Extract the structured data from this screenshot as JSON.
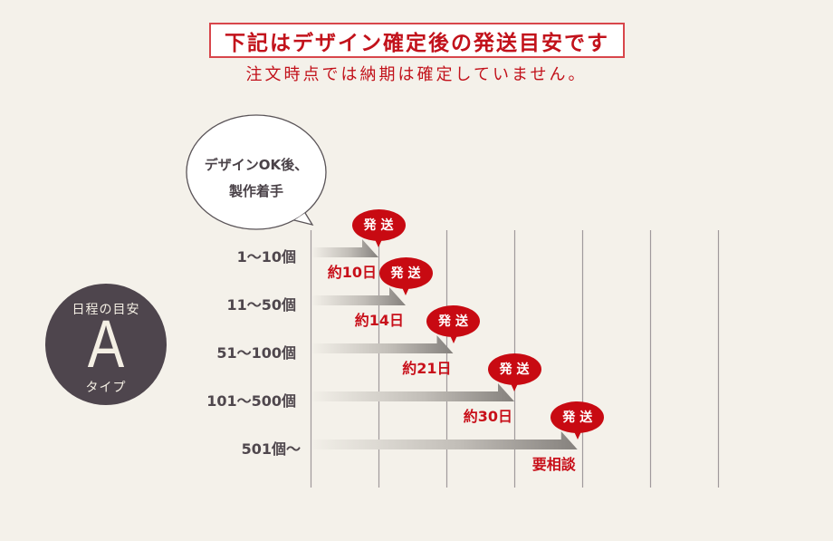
{
  "header": {
    "title": "下記はデザイン確定後の発送目安です",
    "subtitle": "注文時点では納期は確定していません。"
  },
  "speech_bubble": {
    "line1": "デザインOK後、",
    "line2": "製作着手"
  },
  "type_badge": {
    "top_label": "日程の目安",
    "letter": "A",
    "bottom_label": "タイプ"
  },
  "colors": {
    "background": "#f4f1ea",
    "accent_red": "#c8101a",
    "badge": "#4e454d",
    "text_dark": "#4f474d",
    "grid": "#a09a9c"
  },
  "chart_data": {
    "type": "bar",
    "orientation": "horizontal",
    "title": "下記はデザイン確定後の発送目安です",
    "subtitle": "注文時点では納期は確定していません。",
    "categories": [
      "1〜10個",
      "11〜50個",
      "51〜100個",
      "101〜500個",
      "501個〜"
    ],
    "values": [
      10,
      14,
      21,
      30,
      null
    ],
    "value_labels": [
      "約10日",
      "約14日",
      "約21日",
      "約30日",
      "要相談"
    ],
    "bar_end_day": [
      10,
      14,
      21,
      30,
      39.3
    ],
    "marker_label": "発送",
    "start_annotation": "デザインOK後、製作着手",
    "xlabel": "",
    "ylabel": "",
    "xlim": [
      0,
      60
    ],
    "grid": true,
    "grid_step": 10,
    "grid_count": 7,
    "legend": "none"
  }
}
